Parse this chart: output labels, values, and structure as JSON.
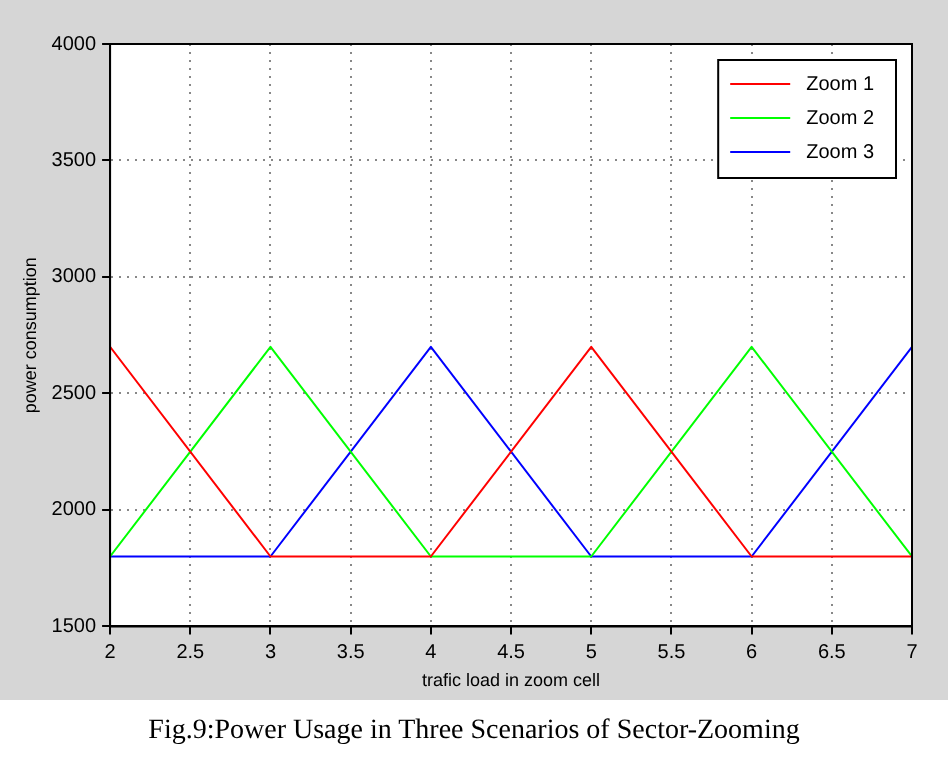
{
  "chart_data": {
    "type": "line",
    "xlabel": "trafic load in zoom cell",
    "ylabel": "power consumption",
    "x": [
      2,
      3,
      4,
      5,
      6,
      7
    ],
    "series": [
      {
        "name": "Zoom 1",
        "color": "#ff0000",
        "values": [
          2700,
          1800,
          1800,
          2700,
          1800,
          1800
        ]
      },
      {
        "name": "Zoom 2",
        "color": "#00ff00",
        "values": [
          1800,
          2700,
          1800,
          1800,
          2700,
          1800
        ]
      },
      {
        "name": "Zoom 3",
        "color": "#0000ff",
        "values": [
          1800,
          1800,
          2700,
          1800,
          1800,
          2700
        ]
      }
    ],
    "xlim": [
      2,
      7
    ],
    "xticks": [
      2,
      2.5,
      3,
      3.5,
      4,
      4.5,
      5,
      5.5,
      6,
      6.5,
      7
    ],
    "ylim": [
      1500,
      4000
    ],
    "yticks": [
      1500,
      2000,
      2500,
      3000,
      3500,
      4000
    ],
    "grid": true,
    "legend": "top right",
    "marker": "none",
    "line_style": "solid",
    "annotations": [
      "Fig.9:Power Usage in Three Scenarios of Sector-Zooming"
    ]
  }
}
